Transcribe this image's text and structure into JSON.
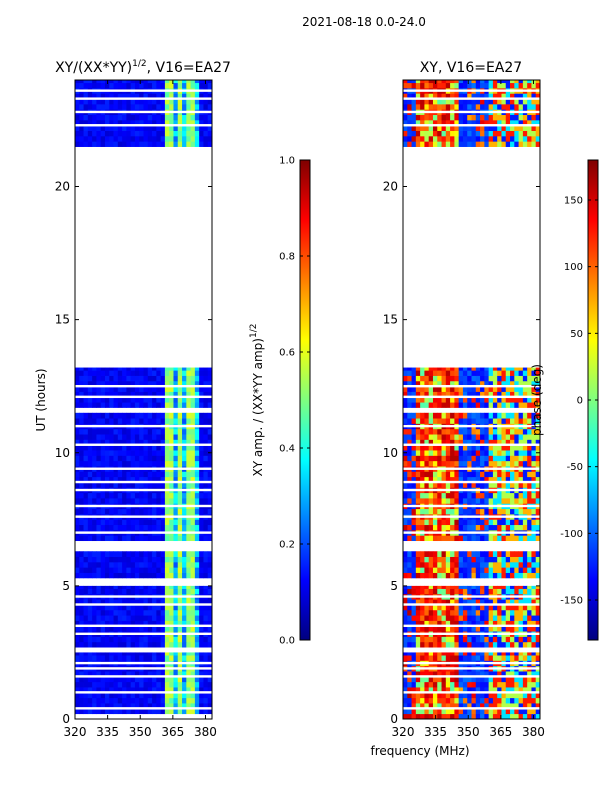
{
  "suptitle": "2021-08-18 0.0-24.0",
  "shared_xlabel": "frequency (MHz)",
  "colors": {
    "jet": [
      "#00007f",
      "#0000ff",
      "#007fff",
      "#00ffff",
      "#7fff7f",
      "#ffff00",
      "#ff7f00",
      "#ff0000",
      "#7f0000"
    ],
    "background": "#ffffff",
    "axis": "#000000"
  },
  "chart_data": [
    {
      "type": "heatmap",
      "title_main": "XY/(XX*YY)",
      "title_sup": "1/2",
      "title_tail": ", V16=EA27",
      "ylabel": "UT (hours)",
      "xlim": [
        320,
        383
      ],
      "ylim": [
        0,
        24
      ],
      "xticks": [
        320,
        335,
        350,
        365,
        380
      ],
      "yticks": [
        0,
        5,
        10,
        15,
        20
      ],
      "color_range": [
        0,
        1
      ],
      "pattern": "amplitude: mostly low (~0.1); bright band 363-378 MHz (~0.4-0.6)",
      "data_intervals_hours": [
        [
          0.2,
          2.5
        ],
        [
          2.7,
          5.0
        ],
        [
          5.3,
          6.3
        ],
        [
          6.7,
          11.5
        ],
        [
          11.7,
          13.2
        ],
        [
          21.5,
          24.0
        ]
      ],
      "gap_lines_hours": [
        0.4,
        1.0,
        1.6,
        1.9,
        2.1,
        3.2,
        3.5,
        4.3,
        4.6,
        7.0,
        7.6,
        8.0,
        8.6,
        8.9,
        9.4,
        10.3,
        11.0,
        12.1,
        12.5,
        22.3,
        22.8,
        23.3,
        23.6
      ],
      "colorbar": {
        "label_main": "XY amp. / (XX*YY amp)",
        "label_sup": "1/2",
        "ticks": [
          "0.0",
          "0.2",
          "0.4",
          "0.6",
          "0.8",
          "1.0"
        ]
      }
    },
    {
      "type": "heatmap",
      "title": "XY, V16=EA27",
      "ylabel": "",
      "xlim": [
        320,
        383
      ],
      "ylim": [
        0,
        24
      ],
      "xticks": [
        320,
        335,
        350,
        365,
        380
      ],
      "yticks": [
        0,
        5,
        10,
        15,
        20
      ],
      "color_range": [
        -180,
        180
      ],
      "pattern": "phase: red/orange near 325-345 MHz, blue elsewhere, mixed band 360-380 MHz",
      "data_intervals_hours": [
        [
          0.0,
          2.5
        ],
        [
          2.7,
          5.0
        ],
        [
          5.3,
          6.3
        ],
        [
          6.7,
          11.5
        ],
        [
          11.7,
          13.2
        ],
        [
          21.5,
          24.0
        ]
      ],
      "gap_lines_hours": [
        0.4,
        1.0,
        1.6,
        1.9,
        2.1,
        3.2,
        3.5,
        4.3,
        4.6,
        7.0,
        7.6,
        8.0,
        8.6,
        8.9,
        9.4,
        10.3,
        11.0,
        12.1,
        12.5,
        22.3,
        22.8,
        23.3,
        23.6
      ],
      "colorbar": {
        "label": "phase (deg)",
        "ticks": [
          "-150",
          "-100",
          "-50",
          "0",
          "50",
          "100",
          "150"
        ]
      }
    }
  ]
}
